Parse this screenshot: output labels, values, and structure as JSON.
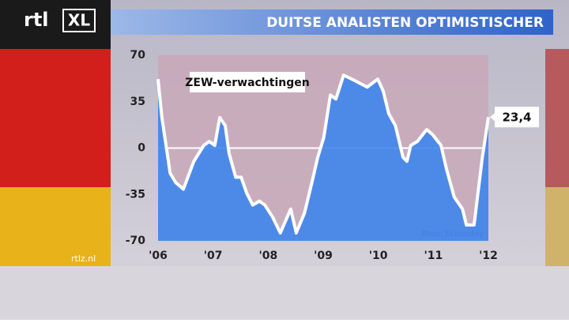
{
  "header": {
    "logo": "rtl",
    "logo_xl": "XL",
    "title": "DUITSE ANALISTEN OPTIMISTISCHER"
  },
  "footer": {
    "site": "rtlz.nl"
  },
  "chart_data": {
    "type": "area",
    "source": "Bron: Econoday",
    "xlim": [
      2006,
      2012
    ],
    "xticks": [
      {
        "value": 2006,
        "label": "'06"
      },
      {
        "value": 2007,
        "label": "'07"
      },
      {
        "value": 2008,
        "label": "'08"
      },
      {
        "value": 2009,
        "label": "'09"
      },
      {
        "value": 2010,
        "label": "'10"
      },
      {
        "value": 2011,
        "label": "'11"
      },
      {
        "value": 2012,
        "label": "'12"
      }
    ],
    "ylim": [
      -70,
      70
    ],
    "yticks": [
      70,
      35,
      0,
      -35,
      -70
    ],
    "zero_line": true,
    "series": [
      {
        "name": "ZEW-verwachtingen",
        "color": "#3f86ec",
        "line_color": "#ffffff",
        "x": [
          2006.0,
          2006.07,
          2006.22,
          2006.32,
          2006.46,
          2006.65,
          2006.83,
          2006.93,
          2007.03,
          2007.12,
          2007.22,
          2007.29,
          2007.41,
          2007.51,
          2007.61,
          2007.72,
          2007.84,
          2007.94,
          2008.08,
          2008.22,
          2008.41,
          2008.51,
          2008.66,
          2008.8,
          2008.9,
          2009.01,
          2009.13,
          2009.23,
          2009.37,
          2009.52,
          2009.66,
          2009.8,
          2009.99,
          2010.09,
          2010.19,
          2010.31,
          2010.45,
          2010.52,
          2010.59,
          2010.71,
          2010.88,
          2010.99,
          2011.14,
          2011.24,
          2011.38,
          2011.53,
          2011.6,
          2011.74,
          2011.89,
          2012.0
        ],
        "values": [
          52,
          23,
          -19,
          -26,
          -31,
          -10,
          2,
          5,
          2,
          23,
          17,
          -4,
          -22,
          -22,
          -34,
          -43,
          -40,
          -43,
          -52,
          -64,
          -46,
          -64,
          -49,
          -25,
          -7,
          8,
          40,
          37,
          55,
          52,
          49,
          46,
          52,
          43,
          26,
          17,
          -7,
          -10,
          2,
          5,
          14,
          10,
          2,
          -16,
          -37,
          -46,
          -58,
          -58,
          -7,
          23.4
        ],
        "value_labels": [
          null,
          null,
          null,
          null,
          null,
          null,
          null,
          null,
          null,
          null,
          null,
          null,
          null,
          null,
          null,
          null,
          null,
          null,
          null,
          null,
          null,
          null,
          null,
          null,
          null,
          null,
          null,
          null,
          null,
          null,
          null,
          null,
          null,
          null,
          null,
          null,
          null,
          null,
          null,
          null,
          null,
          null,
          null,
          null,
          null,
          null,
          null,
          null,
          null,
          "23,4"
        ]
      }
    ]
  }
}
